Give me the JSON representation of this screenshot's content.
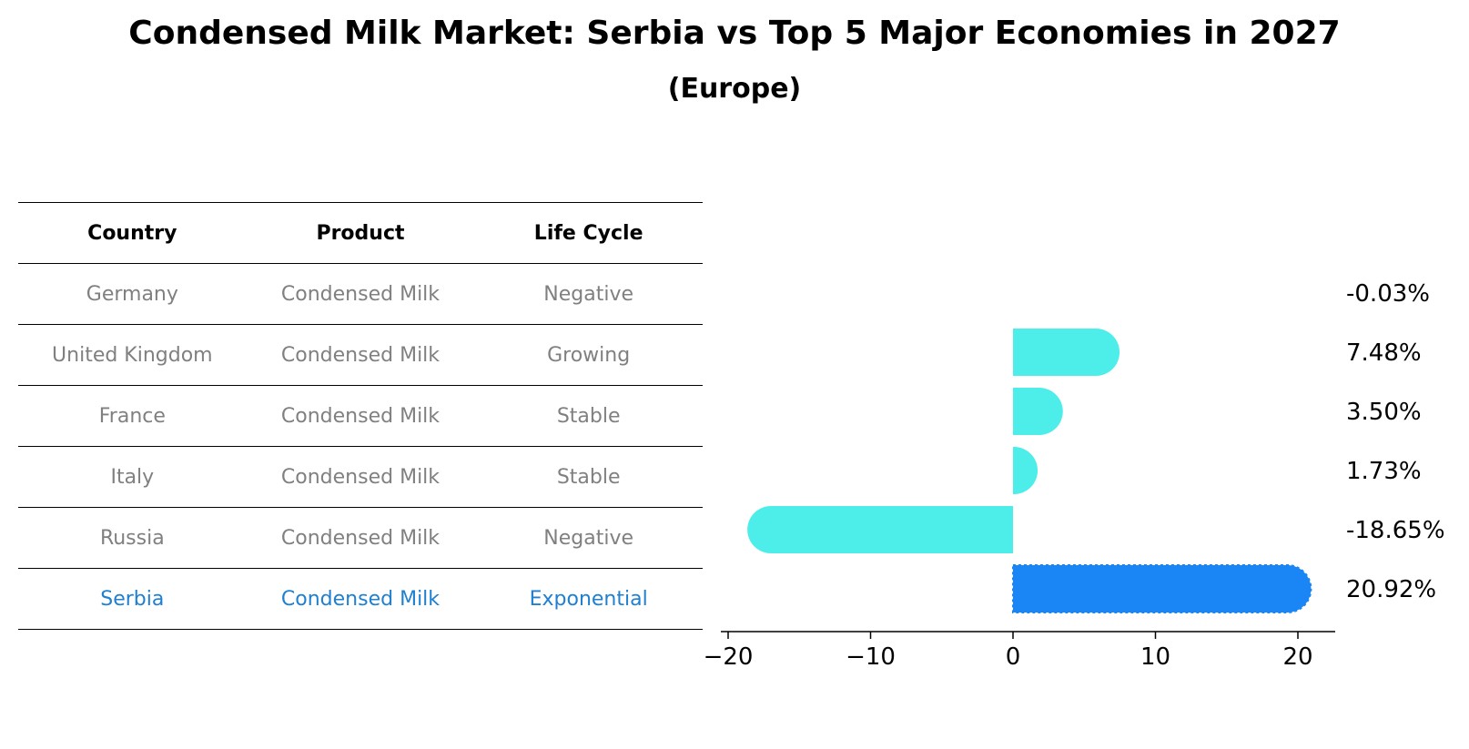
{
  "title": "Condensed Milk Market: Serbia vs Top 5 Major Economies in 2027",
  "subtitle": "(Europe)",
  "table": {
    "headers": [
      "Country",
      "Product",
      "Life Cycle"
    ],
    "rows": [
      [
        "Germany",
        "Condensed Milk",
        "Negative"
      ],
      [
        "United Kingdom",
        "Condensed Milk",
        "Growing"
      ],
      [
        "France",
        "Condensed Milk",
        "Stable"
      ],
      [
        "Italy",
        "Condensed Milk",
        "Stable"
      ],
      [
        "Russia",
        "Condensed Milk",
        "Negative"
      ],
      [
        "Serbia",
        "Condensed Milk",
        "Exponential"
      ]
    ],
    "highlight_row": 5
  },
  "colors": {
    "bar": "#4deeea",
    "highlight_bar": "#1a85f5",
    "highlight_text": "#1f7fd0",
    "muted_text": "#808080"
  },
  "chart_data": {
    "type": "bar",
    "orientation": "horizontal",
    "categories": [
      "Germany",
      "United Kingdom",
      "France",
      "Italy",
      "Russia",
      "Serbia"
    ],
    "values": [
      -0.03,
      7.48,
      3.5,
      1.73,
      -18.65,
      20.92
    ],
    "value_labels": [
      "-0.03%",
      "7.48%",
      "3.50%",
      "1.73%",
      "-18.65%",
      "20.92%"
    ],
    "highlight_category": "Serbia",
    "xlim": [
      -20.5,
      22.5
    ],
    "xticks": [
      -20,
      -10,
      0,
      10,
      20
    ],
    "xtick_labels": [
      "−20",
      "−10",
      "0",
      "10",
      "20"
    ],
    "xlabel": "",
    "ylabel": "",
    "grid": false
  }
}
